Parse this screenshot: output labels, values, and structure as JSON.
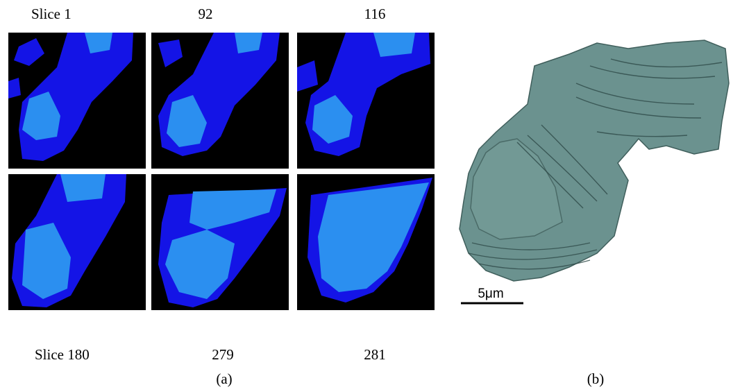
{
  "figure": {
    "panel_a": {
      "top_labels": [
        "Slice 1",
        "92",
        "116"
      ],
      "bottom_labels": [
        "Slice 180",
        "279",
        "281"
      ],
      "caption": "(a)"
    },
    "panel_b": {
      "scale_bar": "5μm",
      "caption": "(b)"
    }
  }
}
